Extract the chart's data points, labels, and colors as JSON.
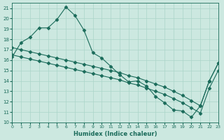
{
  "xlabel": "Humidex (Indice chaleur)",
  "bg_color": "#cce8e0",
  "line_color": "#1a6b5a",
  "grid_color": "#aad4c8",
  "xlim": [
    0,
    23
  ],
  "ylim": [
    10,
    21.5
  ],
  "xticks": [
    0,
    1,
    2,
    3,
    4,
    5,
    6,
    7,
    8,
    9,
    10,
    11,
    12,
    13,
    14,
    15,
    16,
    17,
    18,
    19,
    20,
    21,
    22,
    23
  ],
  "yticks": [
    10,
    11,
    12,
    13,
    14,
    15,
    16,
    17,
    18,
    19,
    20,
    21
  ],
  "line1_x": [
    0,
    1,
    2,
    3,
    4,
    5,
    6,
    7,
    8,
    9,
    10,
    11,
    12,
    13,
    14,
    15,
    16,
    17,
    18,
    19,
    20,
    21,
    22,
    23
  ],
  "line1_y": [
    16.3,
    17.7,
    18.2,
    19.1,
    19.1,
    19.9,
    21.1,
    20.3,
    18.9,
    16.7,
    16.2,
    15.4,
    14.6,
    13.9,
    14.0,
    13.5,
    12.5,
    11.9,
    11.2,
    11.1,
    10.5,
    11.6,
    14.0,
    15.7
  ],
  "line2_x": [
    0,
    1,
    2,
    3,
    4,
    5,
    6,
    7,
    8,
    9,
    10,
    11,
    12,
    13,
    14,
    15,
    16,
    17,
    18,
    19,
    20,
    21,
    22,
    23
  ],
  "line2_y": [
    17.2,
    17.0,
    16.8,
    16.6,
    16.4,
    16.2,
    16.0,
    15.8,
    15.6,
    15.4,
    15.2,
    15.0,
    14.8,
    14.5,
    14.3,
    14.0,
    13.7,
    13.4,
    13.0,
    12.6,
    12.1,
    11.6,
    14.0,
    15.7
  ],
  "line3_x": [
    0,
    1,
    2,
    3,
    4,
    5,
    6,
    7,
    8,
    9,
    10,
    11,
    12,
    13,
    14,
    15,
    16,
    17,
    18,
    19,
    20,
    21,
    22,
    23
  ],
  "line3_y": [
    16.5,
    16.3,
    16.1,
    15.9,
    15.7,
    15.5,
    15.3,
    15.1,
    14.9,
    14.7,
    14.5,
    14.3,
    14.1,
    13.8,
    13.6,
    13.3,
    13.0,
    12.7,
    12.3,
    11.9,
    11.4,
    10.9,
    13.3,
    15.0
  ],
  "marker": "D",
  "marker_size": 2.5,
  "line_width": 0.8
}
